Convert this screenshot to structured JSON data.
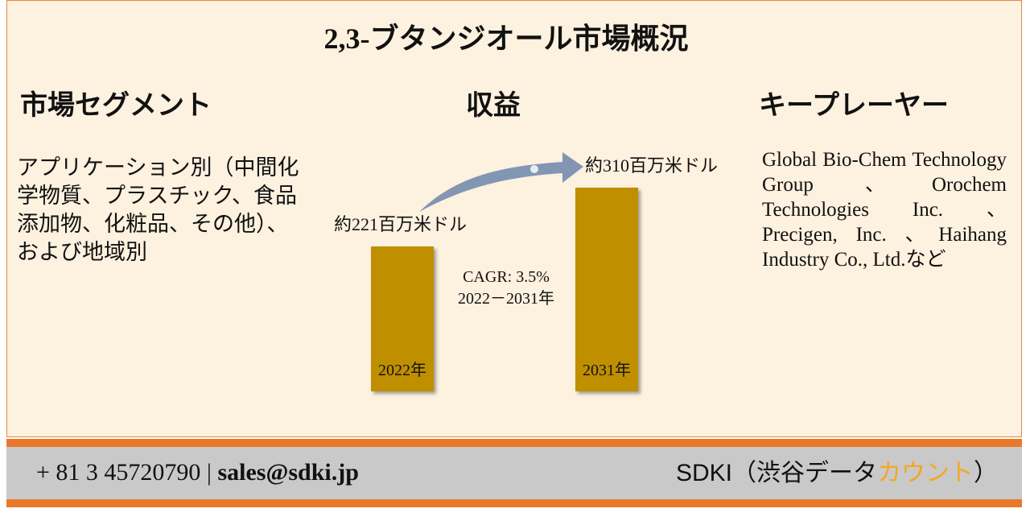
{
  "title": "2,3-ブタンジオール市場概況",
  "segments": {
    "heading": "市場セグメント",
    "text": "アプリケーション別（中間化学物質、プラスチック、食品添加物、化粧品、その他）、および地域別"
  },
  "revenue": {
    "heading": "収益",
    "bars": [
      {
        "year": "2022年",
        "value": 221,
        "value_label": "約221百万米ドル"
      },
      {
        "year": "2031年",
        "value": 310,
        "value_label": "約310百万米ドル"
      }
    ],
    "cagr": "CAGR: 3.5%",
    "period": "2022－2031年"
  },
  "players": {
    "heading": "キープレーヤー",
    "text": "Global Bio-Chem Technology Group 、Orochem Technologies Inc. 、 Precigen, Inc. 、Haihang Industry Co., Ltd.など"
  },
  "footer": {
    "phone": "+ 81 3 45720790",
    "separator": "|",
    "email": "sales@sdki.jp",
    "brand_start": "SDKI（渋谷データ",
    "brand_highlight": "カウント",
    "brand_end": "）"
  }
}
